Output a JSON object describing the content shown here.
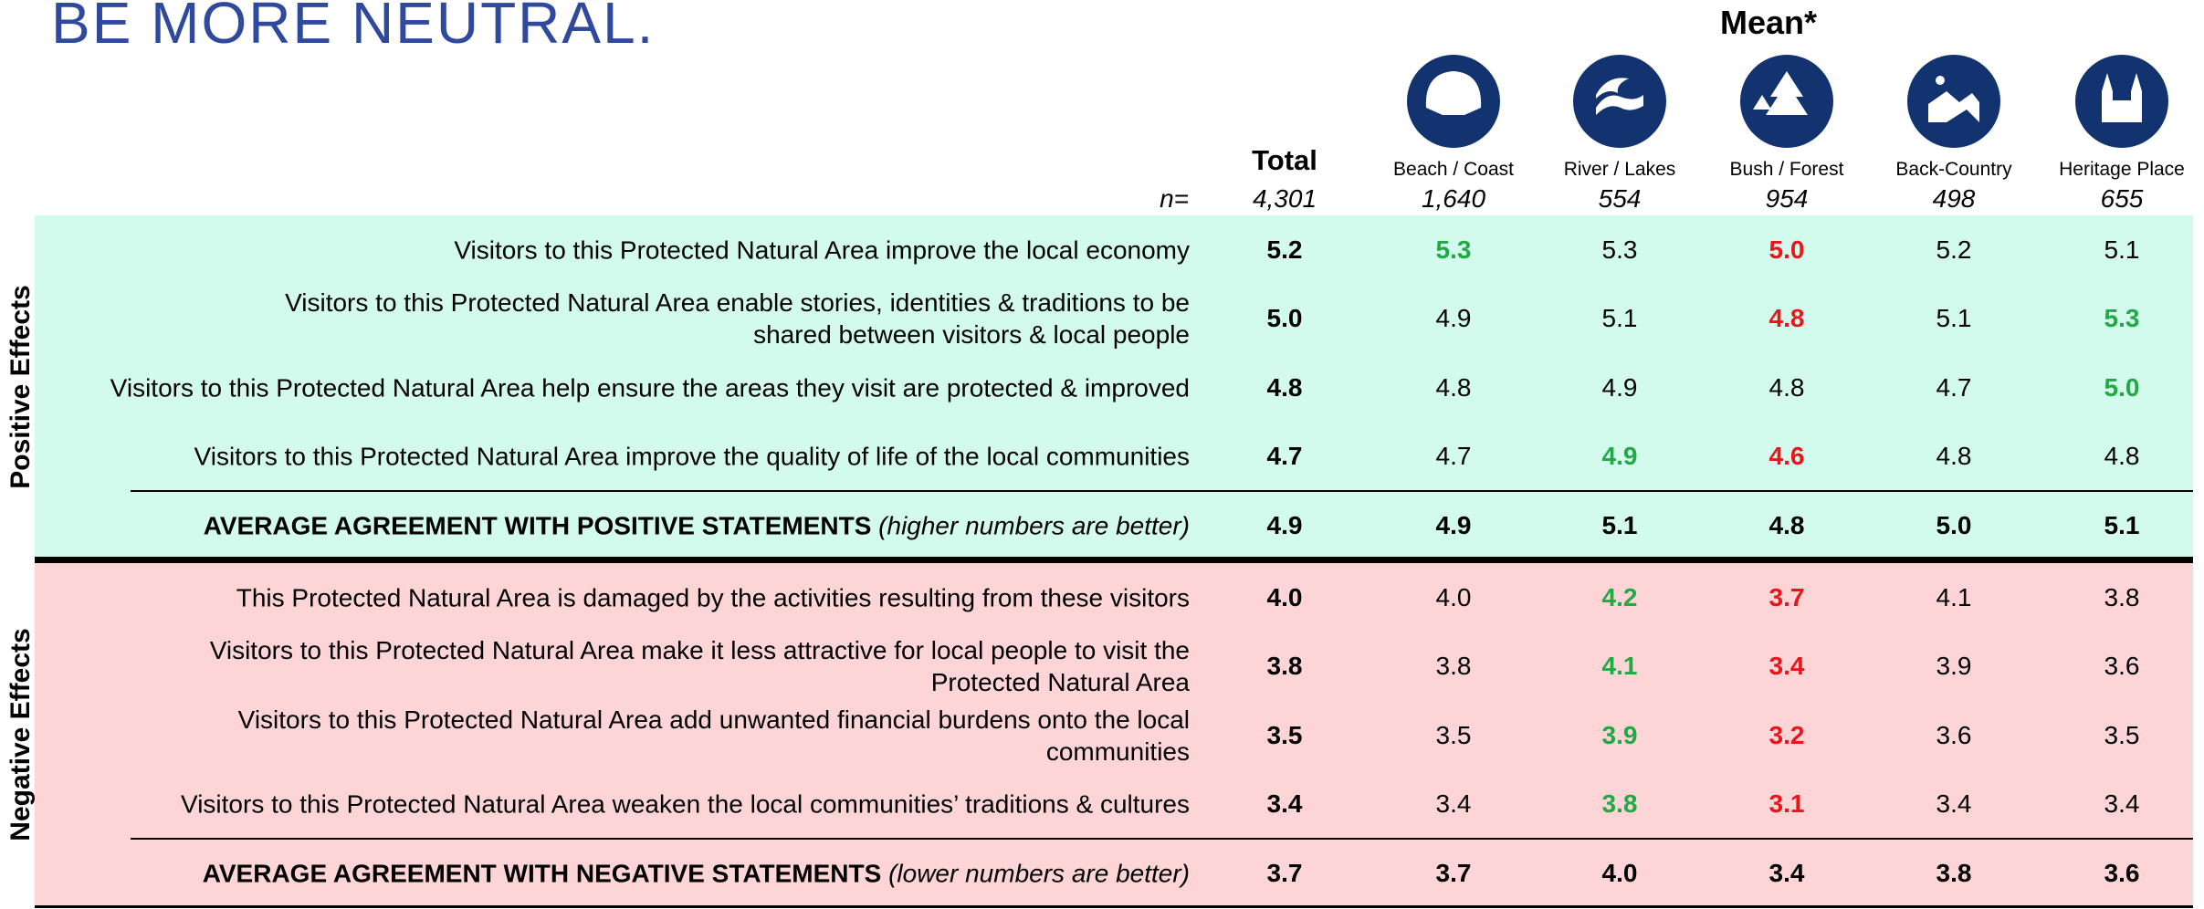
{
  "title": "BE MORE NEUTRAL.",
  "mean_label": "Mean*",
  "n_label": "n=",
  "columns": [
    {
      "name": "Total",
      "n": "4,301"
    },
    {
      "name": "Beach / Coast",
      "n": "1,640"
    },
    {
      "name": "River / Lakes",
      "n": "554"
    },
    {
      "name": "Bush / Forest",
      "n": "954"
    },
    {
      "name": "Back-Country",
      "n": "498"
    },
    {
      "name": "Heritage Place",
      "n": "655"
    }
  ],
  "sections": [
    {
      "label": "Positive Effects",
      "background": "#d3fbed",
      "rows": [
        {
          "lines": [
            "Visitors to this Protected Natural Area improve the local economy"
          ],
          "values": [
            "5.2",
            {
              "text": "5.3",
              "color": "#22a845"
            },
            "5.3",
            {
              "text": "5.0",
              "color": "#e8161b"
            },
            "5.2",
            "5.1"
          ]
        },
        {
          "lines": [
            "Visitors to this Protected Natural Area enable stories, identities & traditions to be",
            "shared between visitors & local people"
          ],
          "values": [
            "5.0",
            "4.9",
            "5.1",
            {
              "text": "4.8",
              "color": "#e8161b"
            },
            "5.1",
            {
              "text": "5.3",
              "color": "#22a845"
            }
          ]
        },
        {
          "lines": [
            "Visitors to this Protected Natural Area help ensure the areas they visit are protected & improved"
          ],
          "values": [
            "4.8",
            "4.8",
            "4.9",
            "4.8",
            "4.7",
            {
              "text": "5.0",
              "color": "#22a845"
            }
          ]
        },
        {
          "lines": [
            "Visitors to this Protected Natural Area improve the quality of life of the local communities"
          ],
          "values": [
            "4.7",
            "4.7",
            {
              "text": "4.9",
              "color": "#22a845"
            },
            {
              "text": "4.6",
              "color": "#e8161b"
            },
            "4.8",
            "4.8"
          ]
        }
      ],
      "average": {
        "label": "AVERAGE AGREEMENT WITH POSITIVE STATEMENTS",
        "note": "(higher numbers are better)",
        "values": [
          "4.9",
          "4.9",
          "5.1",
          "4.8",
          "5.0",
          "5.1"
        ]
      }
    },
    {
      "label": "Negative Effects",
      "background": "#fdd5d6",
      "rows": [
        {
          "lines": [
            "This Protected Natural Area is damaged by the activities resulting from these visitors"
          ],
          "values": [
            "4.0",
            "4.0",
            {
              "text": "4.2",
              "color": "#22a845"
            },
            {
              "text": "3.7",
              "color": "#e8161b"
            },
            "4.1",
            "3.8"
          ]
        },
        {
          "lines": [
            "Visitors to this Protected Natural Area make it less attractive for local people to visit the",
            "Protected Natural Area"
          ],
          "values": [
            "3.8",
            "3.8",
            {
              "text": "4.1",
              "color": "#22a845"
            },
            {
              "text": "3.4",
              "color": "#e8161b"
            },
            "3.9",
            "3.6"
          ]
        },
        {
          "lines": [
            "Visitors to this Protected Natural Area add unwanted financial burdens onto the local",
            "communities"
          ],
          "values": [
            "3.5",
            "3.5",
            {
              "text": "3.9",
              "color": "#22a845"
            },
            {
              "text": "3.2",
              "color": "#e8161b"
            },
            "3.6",
            "3.5"
          ]
        },
        {
          "lines": [
            "Visitors to this Protected Natural Area weaken the local communities’ traditions & cultures"
          ],
          "values": [
            "3.4",
            "3.4",
            {
              "text": "3.8",
              "color": "#22a845"
            },
            {
              "text": "3.1",
              "color": "#e8161b"
            },
            "3.4",
            "3.4"
          ]
        }
      ],
      "average": {
        "label": "AVERAGE AGREEMENT WITH NEGATIVE STATEMENTS",
        "note": "(lower numbers are better)",
        "values": [
          "3.7",
          "3.7",
          "4.0",
          "3.4",
          "3.8",
          "3.6"
        ]
      }
    }
  ]
}
